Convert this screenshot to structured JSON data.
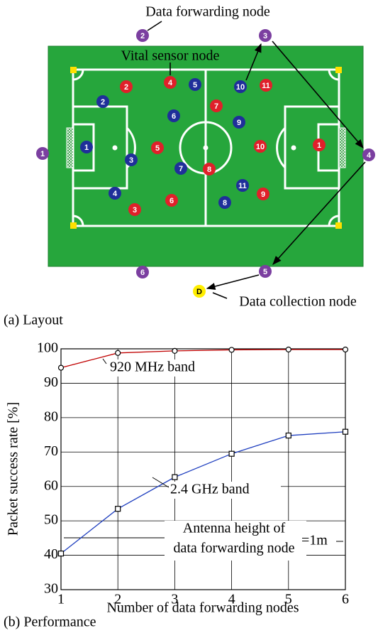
{
  "layout": {
    "caption": "(a) Layout",
    "forwarding_label": "Data forwarding node",
    "vital_label": "Vital sensor node",
    "collection_label": "Data collection node",
    "forwarding_nodes": [
      "1",
      "2",
      "3",
      "4",
      "5",
      "6"
    ],
    "blue_nodes": [
      "1",
      "2",
      "3",
      "4",
      "5",
      "6",
      "7",
      "8",
      "9",
      "10",
      "11"
    ],
    "red_nodes": [
      "1",
      "2",
      "3",
      "4",
      "5",
      "6",
      "7",
      "8",
      "9",
      "10",
      "11"
    ],
    "collection_node": "D"
  },
  "chart_data": {
    "type": "line",
    "caption": "(b) Performance",
    "x_label": "Number of data forwarding nodes",
    "y_label": "Packet success rate [%]",
    "x": [
      1,
      2,
      3,
      4,
      5,
      6
    ],
    "series": [
      {
        "name": "920 MHz band",
        "color": "#c00000",
        "values": [
          94.5,
          98.8,
          99.4,
          99.7,
          99.8,
          99.8
        ]
      },
      {
        "name": "2.4 GHz band",
        "color": "#1f3fbf",
        "values": [
          40.5,
          53.5,
          62.7,
          69.5,
          74.8,
          75.9
        ]
      }
    ],
    "xlim": [
      1,
      6
    ],
    "ylim": [
      30,
      100
    ],
    "xticks": [
      1,
      2,
      3,
      4,
      5,
      6
    ],
    "yticks": [
      30,
      40,
      50,
      60,
      70,
      80,
      90,
      100
    ],
    "grid": true,
    "annotation": [
      "Antenna height of",
      "data forwarding node",
      "=1m"
    ]
  }
}
